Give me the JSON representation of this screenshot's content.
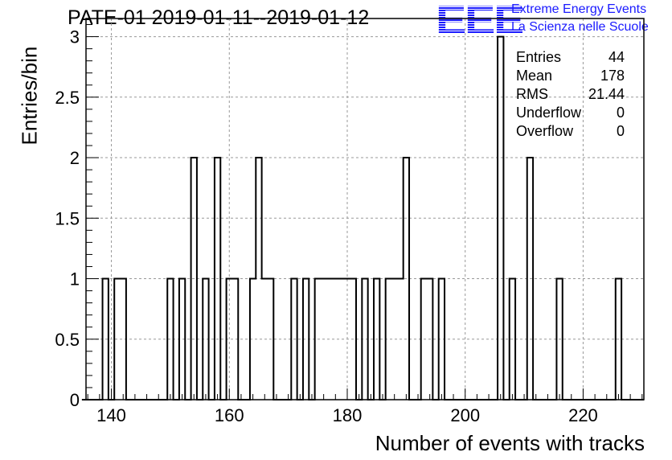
{
  "chart_data": {
    "type": "bar",
    "title": "PATE-01 2019-01-11--2019-01-12",
    "xlabel": "Number of events with tracks",
    "ylabel": "Entries/bin",
    "xlim": [
      135.7,
      230.3
    ],
    "ylim": [
      0,
      3.15
    ],
    "bin_width": 1,
    "x_ticks": [
      140,
      160,
      180,
      200,
      220
    ],
    "y_ticks": [
      0,
      0.5,
      1,
      1.5,
      2,
      2.5,
      3
    ],
    "grid": true,
    "bins": [
      {
        "x": 139,
        "y": 1
      },
      {
        "x": 141,
        "y": 1
      },
      {
        "x": 142,
        "y": 1
      },
      {
        "x": 150,
        "y": 1
      },
      {
        "x": 152,
        "y": 1
      },
      {
        "x": 154,
        "y": 2
      },
      {
        "x": 156,
        "y": 1
      },
      {
        "x": 158,
        "y": 2
      },
      {
        "x": 160,
        "y": 1
      },
      {
        "x": 161,
        "y": 1
      },
      {
        "x": 164,
        "y": 1
      },
      {
        "x": 165,
        "y": 2
      },
      {
        "x": 166,
        "y": 1
      },
      {
        "x": 167,
        "y": 1
      },
      {
        "x": 171,
        "y": 1
      },
      {
        "x": 173,
        "y": 1
      },
      {
        "x": 175,
        "y": 1
      },
      {
        "x": 176,
        "y": 1
      },
      {
        "x": 177,
        "y": 1
      },
      {
        "x": 178,
        "y": 1
      },
      {
        "x": 179,
        "y": 1
      },
      {
        "x": 180,
        "y": 1
      },
      {
        "x": 181,
        "y": 1
      },
      {
        "x": 183,
        "y": 1
      },
      {
        "x": 185,
        "y": 1
      },
      {
        "x": 187,
        "y": 1
      },
      {
        "x": 188,
        "y": 1
      },
      {
        "x": 189,
        "y": 1
      },
      {
        "x": 190,
        "y": 2
      },
      {
        "x": 193,
        "y": 1
      },
      {
        "x": 194,
        "y": 1
      },
      {
        "x": 196,
        "y": 1
      },
      {
        "x": 206,
        "y": 3
      },
      {
        "x": 208,
        "y": 1
      },
      {
        "x": 211,
        "y": 2
      },
      {
        "x": 216,
        "y": 1
      },
      {
        "x": 226,
        "y": 1
      }
    ],
    "stats": {
      "rows": [
        {
          "label": "Entries",
          "value": "44"
        },
        {
          "label": "Mean",
          "value": "178"
        },
        {
          "label": "RMS",
          "value": "21.44"
        },
        {
          "label": "Underflow",
          "value": "0"
        },
        {
          "label": "Overflow",
          "value": "0"
        }
      ]
    },
    "line_color": "#000000",
    "grid_color": "#999999"
  },
  "logo": {
    "mark": "EEE",
    "line1": "Extreme Energy Events",
    "line2": "La Scienza nelle Scuole",
    "color": "#1a1aff"
  }
}
